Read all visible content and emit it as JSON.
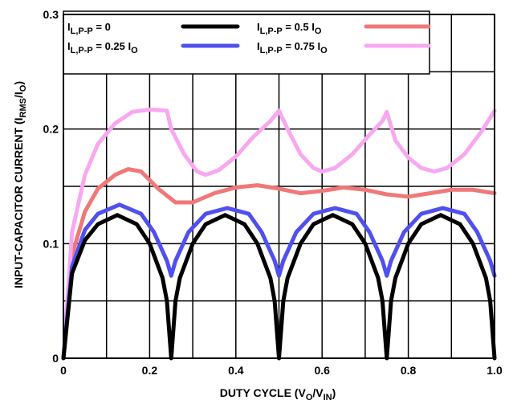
{
  "chart_data": {
    "type": "line",
    "xlabel_main": "DUTY CYCLE (V",
    "xlabel_sub1": "O",
    "xlabel_mid": "/V",
    "xlabel_sub2": "IN",
    "xlabel_end": ")",
    "ylabel_main": "INPUT-CAPACITOR CURRENT (I",
    "ylabel_sub1": "RMS",
    "ylabel_mid": "/I",
    "ylabel_sub2": "O",
    "ylabel_end": ")",
    "xlim": [
      0,
      1.0
    ],
    "ylim": [
      0,
      0.3
    ],
    "x_ticks": [
      "0",
      "0.2",
      "0.4",
      "0.6",
      "0.8",
      "1.0"
    ],
    "y_ticks": [
      "0",
      "0.1",
      "0.2",
      "0.3"
    ],
    "grid": true,
    "legend_position": "top",
    "series": [
      {
        "name_main": "I",
        "name_sub": "L,P-P",
        "name_rest": " = 0",
        "color": "#000000",
        "x": [
          0,
          0.02,
          0.05,
          0.08,
          0.125,
          0.17,
          0.2,
          0.23,
          0.24,
          0.25,
          0.26,
          0.27,
          0.3,
          0.33,
          0.375,
          0.42,
          0.45,
          0.48,
          0.49,
          0.5,
          0.51,
          0.52,
          0.55,
          0.58,
          0.625,
          0.67,
          0.7,
          0.73,
          0.74,
          0.75,
          0.76,
          0.77,
          0.8,
          0.83,
          0.875,
          0.92,
          0.95,
          0.98,
          0.99,
          1.0
        ],
        "y": [
          0,
          0.074,
          0.103,
          0.117,
          0.125,
          0.117,
          0.1,
          0.07,
          0.05,
          0,
          0.05,
          0.07,
          0.1,
          0.117,
          0.125,
          0.117,
          0.1,
          0.07,
          0.05,
          0,
          0.05,
          0.07,
          0.1,
          0.117,
          0.125,
          0.117,
          0.1,
          0.07,
          0.05,
          0,
          0.05,
          0.07,
          0.1,
          0.117,
          0.125,
          0.117,
          0.1,
          0.07,
          0.05,
          0
        ]
      },
      {
        "name_main": "I",
        "name_sub": "L,P-P",
        "name_rest": " = 0.25 I",
        "name_sub2": "O",
        "color": "#5050ee",
        "x": [
          0,
          0.02,
          0.05,
          0.08,
          0.13,
          0.18,
          0.21,
          0.24,
          0.25,
          0.26,
          0.29,
          0.33,
          0.38,
          0.43,
          0.46,
          0.49,
          0.5,
          0.51,
          0.54,
          0.58,
          0.63,
          0.68,
          0.71,
          0.74,
          0.75,
          0.76,
          0.79,
          0.83,
          0.88,
          0.93,
          0.96,
          0.99,
          1.0
        ],
        "y": [
          0,
          0.08,
          0.112,
          0.126,
          0.134,
          0.126,
          0.11,
          0.085,
          0.072,
          0.085,
          0.11,
          0.126,
          0.131,
          0.126,
          0.11,
          0.085,
          0.072,
          0.085,
          0.11,
          0.126,
          0.131,
          0.126,
          0.11,
          0.085,
          0.072,
          0.085,
          0.11,
          0.126,
          0.131,
          0.126,
          0.11,
          0.085,
          0.072
        ]
      },
      {
        "name_main": "I",
        "name_sub": "L,P-P",
        "name_rest": " = 0.5 I",
        "name_sub2": "O",
        "color": "#f07878",
        "x": [
          0,
          0.02,
          0.05,
          0.08,
          0.12,
          0.15,
          0.18,
          0.22,
          0.26,
          0.3,
          0.35,
          0.4,
          0.45,
          0.5,
          0.55,
          0.6,
          0.65,
          0.7,
          0.75,
          0.8,
          0.85,
          0.9,
          0.95,
          1.0
        ],
        "y": [
          0,
          0.09,
          0.128,
          0.148,
          0.16,
          0.165,
          0.163,
          0.148,
          0.136,
          0.136,
          0.144,
          0.149,
          0.151,
          0.148,
          0.144,
          0.146,
          0.149,
          0.147,
          0.143,
          0.141,
          0.144,
          0.147,
          0.147,
          0.144
        ]
      },
      {
        "name_main": "I",
        "name_sub": "L,P-P",
        "name_rest": " = 0.75 I",
        "name_sub2": "O",
        "color": "#f8a8f0",
        "x": [
          0,
          0.02,
          0.05,
          0.08,
          0.12,
          0.16,
          0.2,
          0.24,
          0.25,
          0.28,
          0.31,
          0.33,
          0.36,
          0.4,
          0.44,
          0.48,
          0.5,
          0.52,
          0.55,
          0.58,
          0.6,
          0.63,
          0.67,
          0.71,
          0.74,
          0.75,
          0.77,
          0.8,
          0.83,
          0.86,
          0.89,
          0.93,
          0.97,
          1.0
        ],
        "y": [
          0,
          0.11,
          0.16,
          0.187,
          0.205,
          0.215,
          0.217,
          0.216,
          0.2,
          0.178,
          0.163,
          0.16,
          0.164,
          0.176,
          0.193,
          0.207,
          0.216,
          0.2,
          0.178,
          0.166,
          0.163,
          0.166,
          0.178,
          0.195,
          0.207,
          0.215,
          0.19,
          0.175,
          0.166,
          0.163,
          0.166,
          0.178,
          0.198,
          0.216
        ]
      }
    ]
  }
}
